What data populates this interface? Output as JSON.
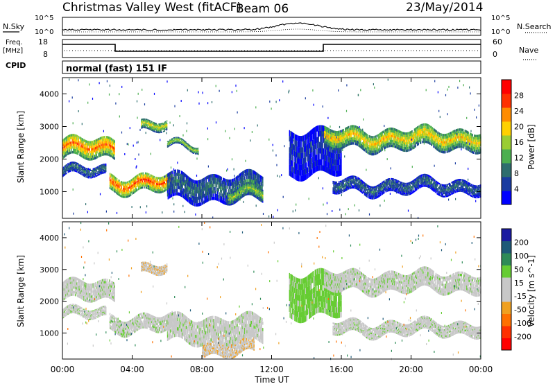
{
  "header": {
    "station": "Christmas Valley West (fitACF)",
    "beam": "Beam 06",
    "date": "23/May/2014"
  },
  "left_labels": {
    "nsky": "N.Sky",
    "freq_line1": "Freq.",
    "freq_line2": "[MHz]",
    "cpid": "CPID"
  },
  "right_labels": {
    "nsearch": "N.Search",
    "nave": "Nave"
  },
  "mode_text": "normal (fast) 151 IF",
  "noise_axis": {
    "left_top": "10^5",
    "left_bottom": "10^0",
    "right_top": "10^5",
    "right_bottom": "10^0"
  },
  "freq_axis": {
    "left_top": "18",
    "left_bottom": "8",
    "right_top": "60",
    "right_bottom": "0"
  },
  "colors": {
    "power": [
      "#0000ff",
      "#1a3ca0",
      "#2e6e6e",
      "#4caf50",
      "#9acd32",
      "#ffd000",
      "#ff8c00",
      "#ff3000",
      "#ff0000"
    ],
    "velocity": [
      "#1a1aa0",
      "#1e5a78",
      "#2e8b57",
      "#66cc33",
      "#c8c8c8",
      "#c8c8c8",
      "#f0a020",
      "#ff7000",
      "#ff3000",
      "#ff0000"
    ]
  },
  "chart_data": [
    {
      "type": "heatmap",
      "panel": "power",
      "xlabel": "",
      "ylabel": "Slant Range [km]",
      "xlim": [
        "00:00",
        "24:00"
      ],
      "ylim": [
        180,
        4500
      ],
      "yticks": [
        1000,
        2000,
        3000,
        4000
      ],
      "colorbar_label": "Power [dB]",
      "colorbar_ticks": [
        4,
        8,
        12,
        16,
        20,
        24,
        28
      ],
      "regions": [
        {
          "t0": 0.0,
          "t1": 3.0,
          "r_center": 2300,
          "r_width": 600,
          "level": 26
        },
        {
          "t0": 0.0,
          "t1": 2.5,
          "r_center": 1600,
          "r_width": 300,
          "level": 11
        },
        {
          "t0": 2.7,
          "t1": 6.3,
          "r_center": 1250,
          "r_width": 500,
          "level": 28
        },
        {
          "t0": 4.5,
          "t1": 6.0,
          "r_center": 3000,
          "r_width": 300,
          "level": 20
        },
        {
          "t0": 6.0,
          "t1": 7.8,
          "r_center": 2400,
          "r_width": 200,
          "level": 18
        },
        {
          "t0": 6.0,
          "t1": 11.5,
          "r_center": 1100,
          "r_width": 800,
          "level": 11
        },
        {
          "t0": 9.5,
          "t1": 11.5,
          "r_center": 900,
          "r_width": 400,
          "level": 18
        },
        {
          "t0": 13.0,
          "t1": 16.0,
          "r_center": 2200,
          "r_width": 1400,
          "level": 7
        },
        {
          "t0": 15.0,
          "t1": 24.0,
          "r_center": 2600,
          "r_width": 600,
          "level": 22
        },
        {
          "t0": 15.5,
          "t1": 24.0,
          "r_center": 1150,
          "r_width": 400,
          "level": 10
        }
      ]
    },
    {
      "type": "heatmap",
      "panel": "velocity",
      "xlabel": "Time UT",
      "ylabel": "Slant Range [km]",
      "xlim": [
        "00:00",
        "24:00"
      ],
      "ylim": [
        180,
        4500
      ],
      "xticks": [
        "00:00",
        "04:00",
        "08:00",
        "12:00",
        "16:00",
        "20:00",
        "00:00"
      ],
      "yticks": [
        1000,
        2000,
        3000,
        4000
      ],
      "colorbar_label": "Velocity [m s^-1]",
      "colorbar_ticks": [
        200,
        100,
        50,
        15,
        -15,
        -50,
        -100,
        -200
      ],
      "regions": [
        {
          "t0": 0.0,
          "t1": 3.0,
          "r_center": 2300,
          "r_width": 600,
          "level": 0
        },
        {
          "t0": 0.0,
          "t1": 2.5,
          "r_center": 1600,
          "r_width": 300,
          "level": 0
        },
        {
          "t0": 2.7,
          "t1": 6.3,
          "r_center": 1300,
          "r_width": 500,
          "level": 0
        },
        {
          "t0": 4.5,
          "t1": 6.0,
          "r_center": 3000,
          "r_width": 300,
          "level": -40
        },
        {
          "t0": 6.0,
          "t1": 11.5,
          "r_center": 1100,
          "r_width": 800,
          "level": 0
        },
        {
          "t0": 8.0,
          "t1": 11.0,
          "r_center": 500,
          "r_width": 400,
          "level": -40
        },
        {
          "t0": 13.0,
          "t1": 16.0,
          "r_center": 2200,
          "r_width": 1400,
          "level": 30
        },
        {
          "t0": 15.0,
          "t1": 24.0,
          "r_center": 2600,
          "r_width": 600,
          "level": 0
        },
        {
          "t0": 15.5,
          "t1": 24.0,
          "r_center": 1150,
          "r_width": 400,
          "level": 0
        }
      ]
    }
  ]
}
